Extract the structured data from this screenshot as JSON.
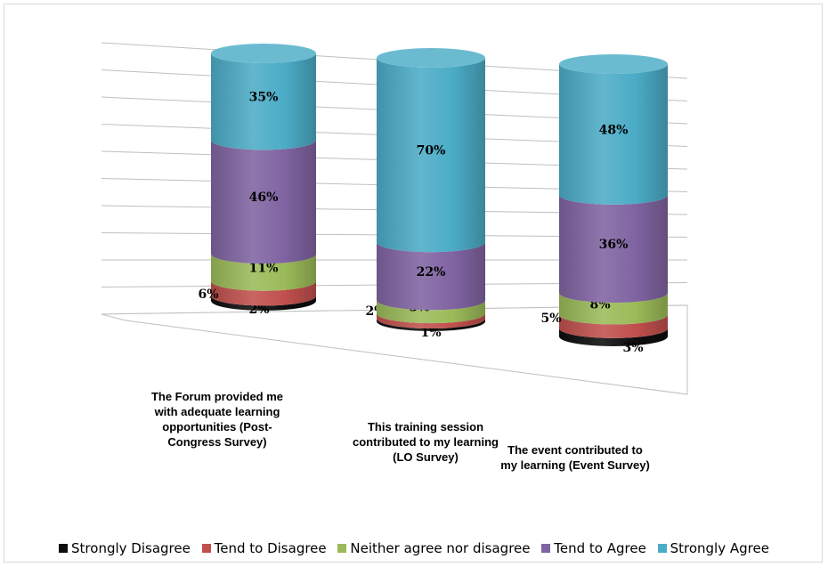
{
  "chart_data": {
    "type": "bar",
    "stacked": true,
    "style": "3d-cylinder",
    "categories": [
      "The Forum provided me with adequate learning opportunities (Post-Congress Survey)",
      "This training session contributed to my learning (LO Survey)",
      "The event contributed to my learning (Event Survey)"
    ],
    "series": [
      {
        "name": "Strongly Disagree",
        "color": "#0d0d0d",
        "values": [
          2,
          1,
          3
        ]
      },
      {
        "name": "Tend to Disagree",
        "color": "#c0504d",
        "values": [
          6,
          2,
          5
        ]
      },
      {
        "name": "Neither agree nor disagree",
        "color": "#9bbb59",
        "values": [
          11,
          5,
          8
        ]
      },
      {
        "name": "Tend to Agree",
        "color": "#8064a2",
        "values": [
          46,
          22,
          36
        ]
      },
      {
        "name": "Strongly Agree",
        "color": "#4bacc6",
        "values": [
          35,
          70,
          48
        ]
      }
    ],
    "data_labels": [
      [
        "2%",
        "6%",
        "11%",
        "46%",
        "35%"
      ],
      [
        "1%",
        "2%",
        "5%",
        "22%",
        "70%"
      ],
      [
        "3%",
        "5%",
        "8%",
        "36%",
        "48%"
      ]
    ],
    "ylim": [
      0,
      100
    ],
    "grid": true,
    "legend_position": "bottom"
  },
  "category_labels": [
    [
      "The Forum provided me",
      "with adequate learning",
      "opportunities (Post-",
      "Congress Survey)"
    ],
    [
      "This training session",
      "contributed to my learning",
      "(LO Survey)"
    ],
    [
      "The event contributed to",
      "my learning (Event Survey)"
    ]
  ]
}
